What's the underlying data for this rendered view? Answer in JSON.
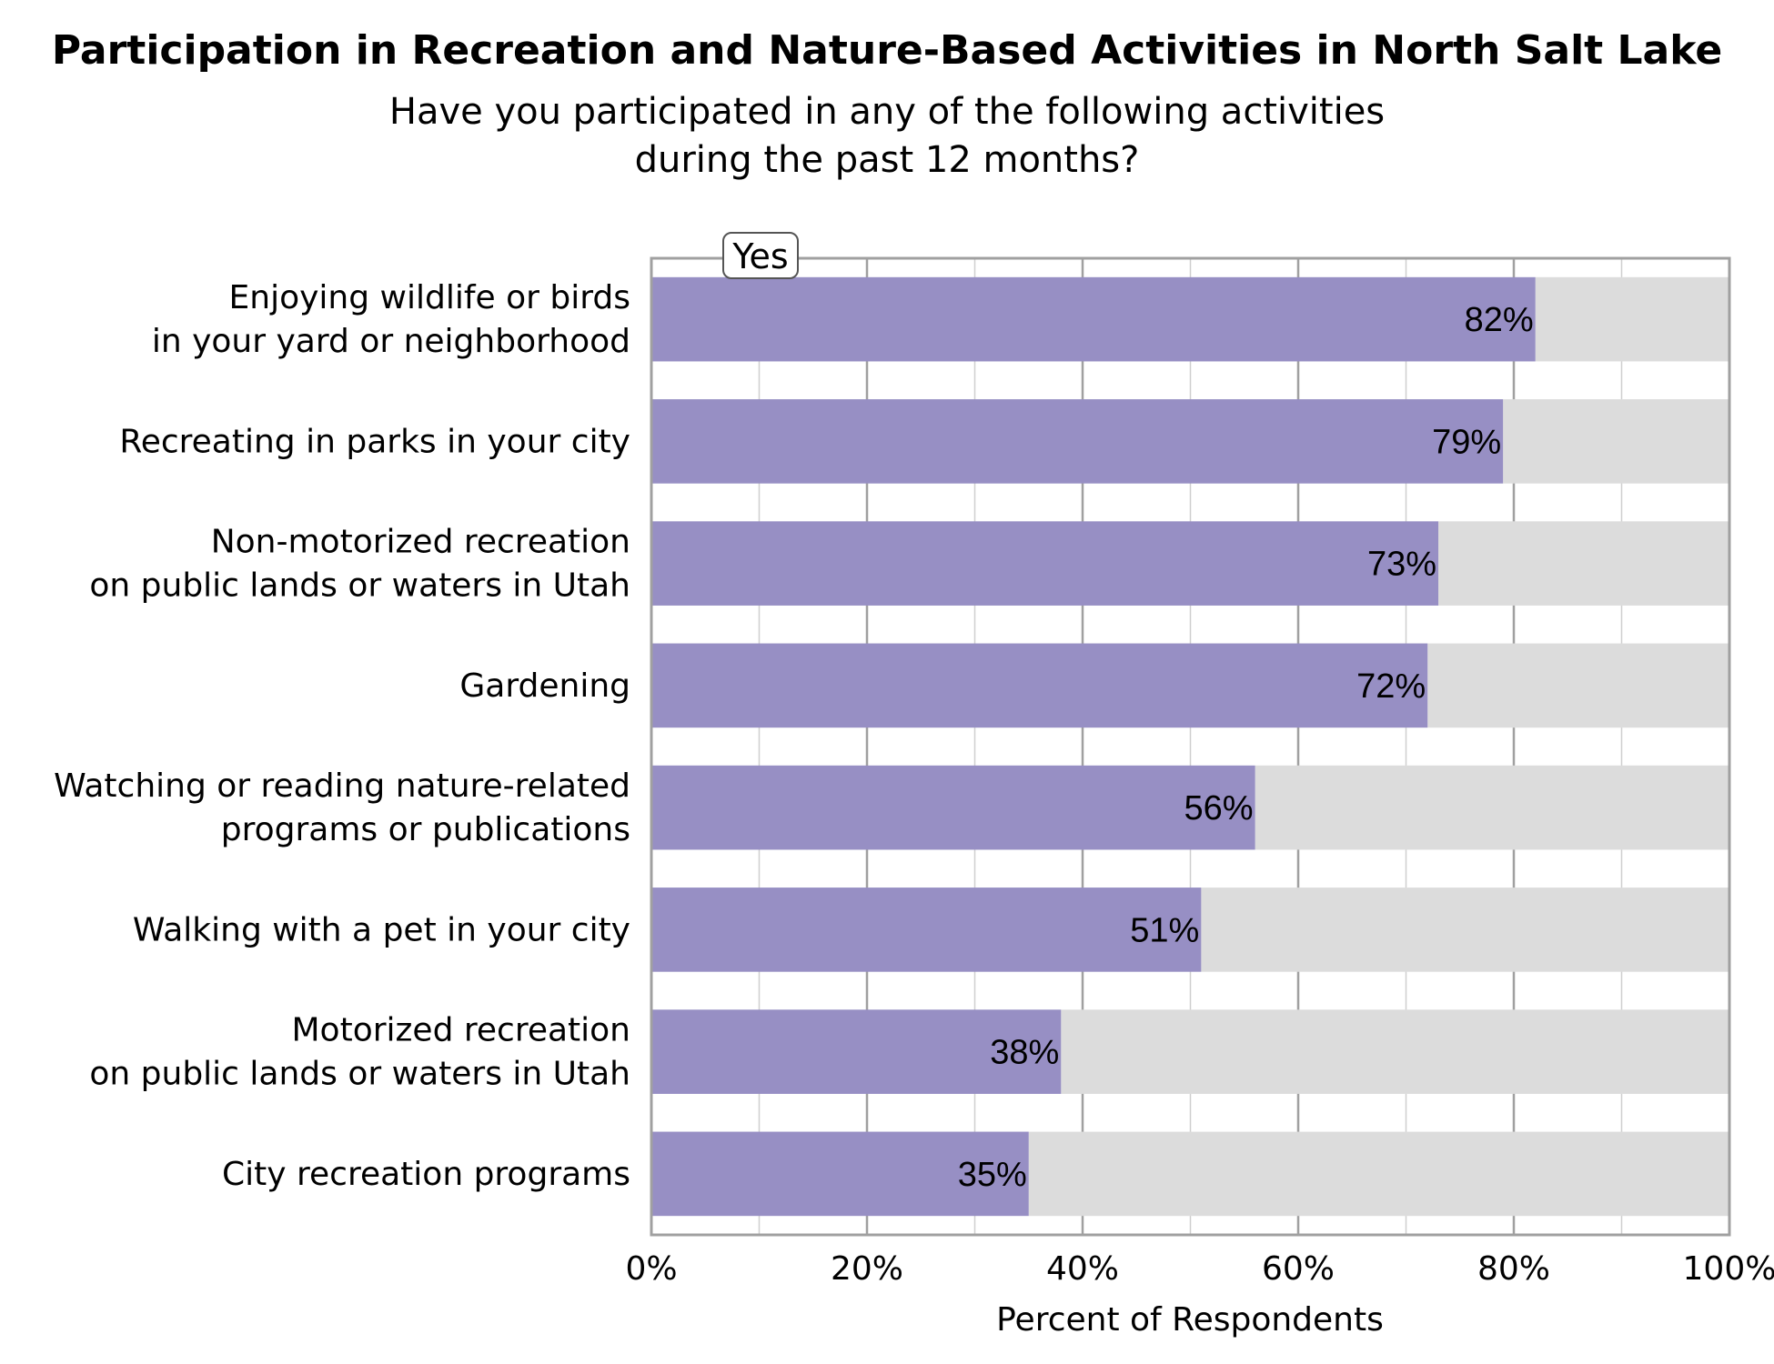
{
  "chart_data": {
    "type": "bar",
    "orientation": "horizontal",
    "stacked": true,
    "title": "Participation in Recreation and Nature-Based Activities in North Salt Lake",
    "subtitle_lines": [
      "Have you participated in any of the following activities",
      "during the past 12 months?"
    ],
    "xlabel": "Percent of Respondents",
    "ylabel": "",
    "xlim": [
      0,
      100
    ],
    "x_ticks": [
      0,
      20,
      40,
      60,
      80,
      100
    ],
    "x_tick_labels": [
      "0%",
      "20%",
      "40%",
      "60%",
      "80%",
      "100%"
    ],
    "grid": true,
    "legend": {
      "placement": "top-left",
      "entries": [
        "Yes"
      ]
    },
    "categories": [
      [
        "Enjoying wildlife or birds",
        "in your yard or neighborhood"
      ],
      [
        "Recreating in parks in your city"
      ],
      [
        "Non-motorized recreation",
        "on public lands or waters in Utah"
      ],
      [
        "Gardening"
      ],
      [
        "Watching or reading nature-related",
        "programs or publications"
      ],
      [
        "Walking with a pet in your city"
      ],
      [
        "Motorized recreation",
        "on public lands or waters in Utah"
      ],
      [
        "City recreation programs"
      ]
    ],
    "series": [
      {
        "name": "Yes",
        "color": "#978fc4",
        "values": [
          82,
          79,
          73,
          72,
          56,
          51,
          38,
          35
        ],
        "labels": [
          "82%",
          "79%",
          "73%",
          "72%",
          "56%",
          "51%",
          "38%",
          "35%"
        ]
      },
      {
        "color": "#dcdcdc",
        "values": [
          18,
          21,
          27,
          28,
          44,
          49,
          62,
          65
        ]
      }
    ],
    "colors": {
      "yes": "#978fc4",
      "remainder": "#dcdcdc",
      "frame": "#a0a0a0",
      "grid": "#cfcfcf"
    }
  }
}
